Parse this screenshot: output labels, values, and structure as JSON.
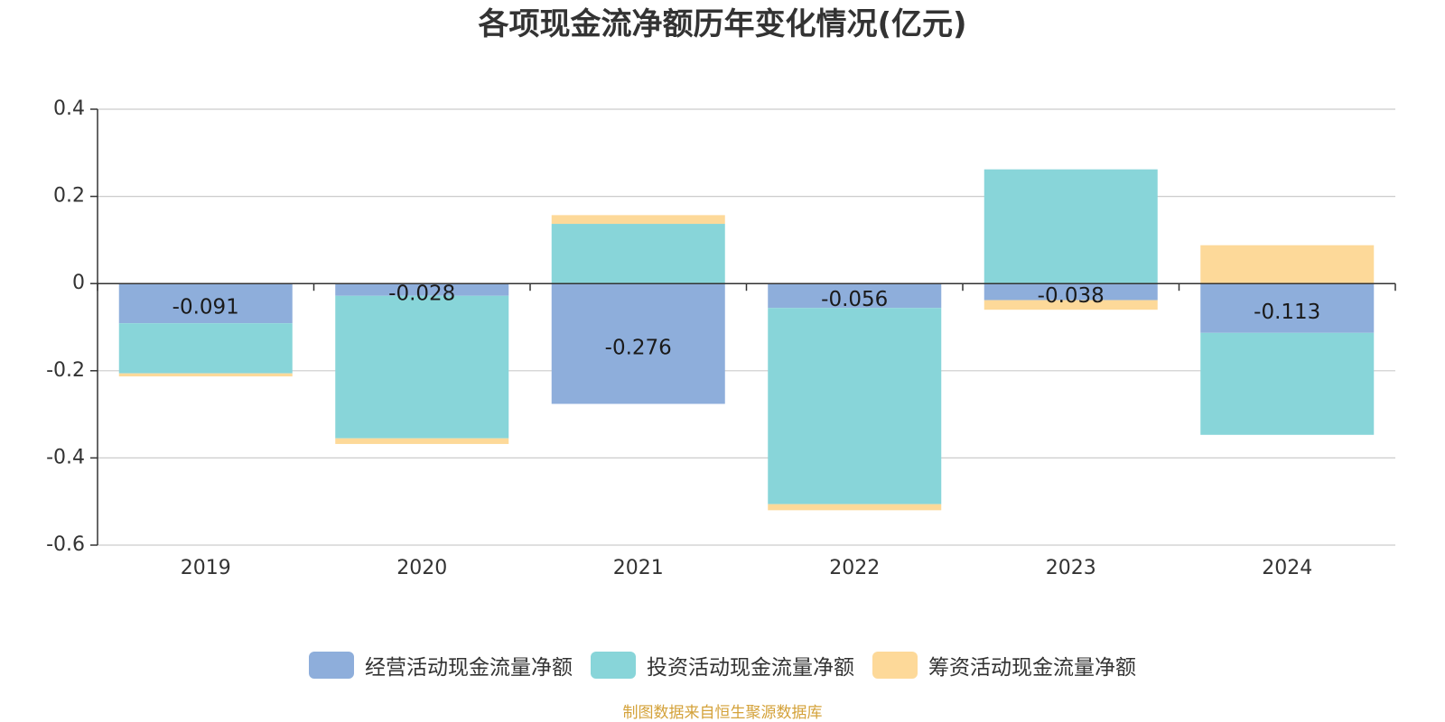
{
  "chart_data": {
    "type": "bar",
    "stacked": true,
    "title": "各项现金流净额历年变化情况(亿元)",
    "categories": [
      "2019",
      "2020",
      "2021",
      "2022",
      "2023",
      "2024"
    ],
    "series": [
      {
        "name": "经营活动现金流量净额",
        "color": "#8eaedb",
        "values": [
          -0.091,
          -0.028,
          -0.276,
          -0.056,
          -0.038,
          -0.113
        ],
        "labels": [
          "-0.091",
          "-0.028",
          "-0.276",
          "-0.056",
          "-0.038",
          "-0.113"
        ]
      },
      {
        "name": "投资活动现金流量净额",
        "color": "#88d5d9",
        "values": [
          -0.115,
          -0.327,
          0.137,
          -0.45,
          0.262,
          -0.234
        ]
      },
      {
        "name": "筹资活动现金流量净额",
        "color": "#fdd999",
        "values": [
          -0.007,
          -0.013,
          0.02,
          -0.014,
          -0.022,
          0.088
        ]
      }
    ],
    "ylim": [
      -0.6,
      0.4
    ],
    "yticks": [
      {
        "value": 0.4,
        "label": "0.4"
      },
      {
        "value": 0.2,
        "label": "0.2"
      },
      {
        "value": 0,
        "label": "0"
      },
      {
        "value": -0.2,
        "label": "-0.2"
      },
      {
        "value": -0.4,
        "label": "-0.4"
      },
      {
        "value": -0.6,
        "label": "-0.6"
      }
    ],
    "grid": true,
    "legend_position": "bottom"
  },
  "footer": {
    "source": "制图数据来自恒生聚源数据库",
    "source_color": "#d4a23a"
  }
}
